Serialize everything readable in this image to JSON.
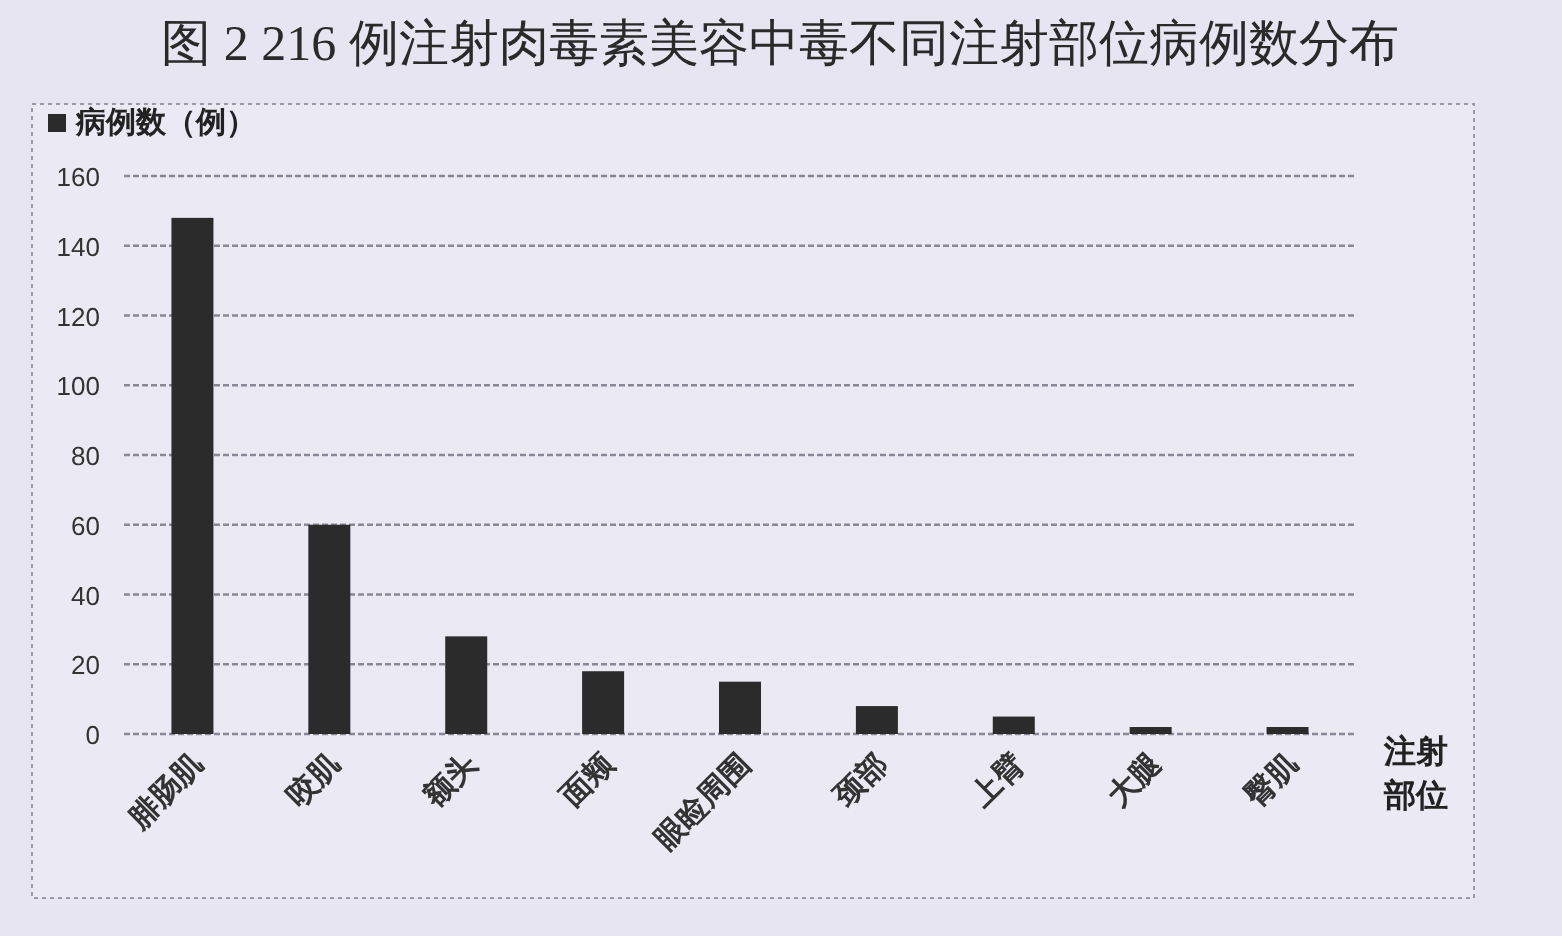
{
  "chart_data": {
    "type": "bar",
    "title": "图 2 216 例注射肉毒素美容中毒不同注射部位病例数分布",
    "xlabel": "注射部位",
    "categories": [
      "腓肠肌",
      "咬肌",
      "额头",
      "面颊",
      "眼睑周围",
      "颈部",
      "上臂",
      "大腿",
      "臀肌"
    ],
    "series": [
      {
        "name": "病例数（例）",
        "color": "#2b2b2b",
        "values": [
          148,
          60,
          28,
          18,
          15,
          8,
          5,
          2,
          2
        ]
      }
    ],
    "ylim": [
      0,
      160
    ],
    "yticks": [
      0,
      20,
      40,
      60,
      80,
      100,
      120,
      140,
      160
    ],
    "grid": "y",
    "legend": "top left"
  }
}
